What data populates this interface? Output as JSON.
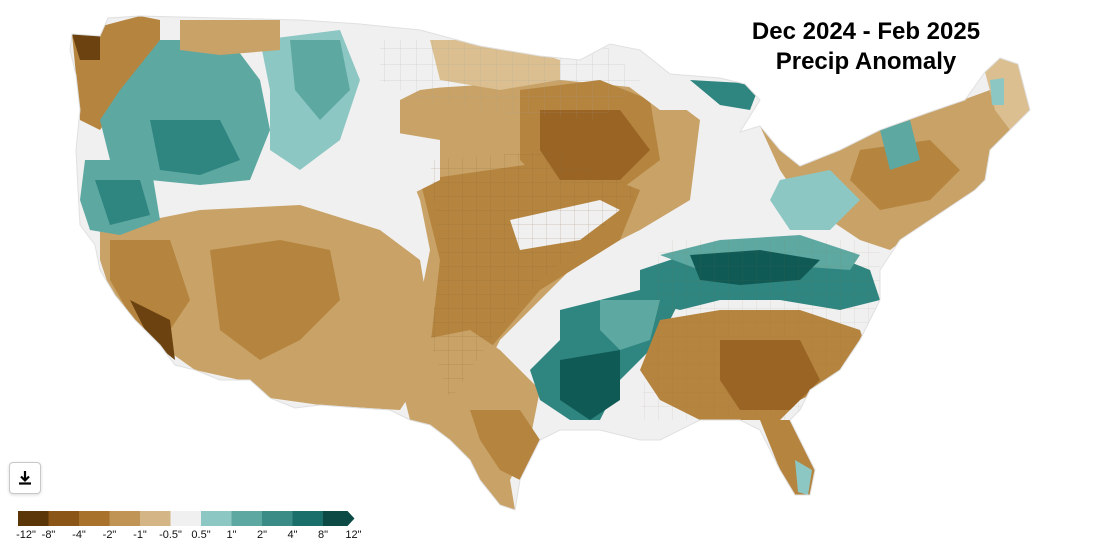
{
  "title": {
    "line1": "Dec 2024 - Feb 2025",
    "line2": "Precip Anomaly"
  },
  "download_button": {
    "icon": "download-icon"
  },
  "legend": {
    "labels": [
      "-12\"",
      "-8\"",
      "-4\"",
      "-2\"",
      "-1\"",
      "-0.5\"",
      "0.5\"",
      "1\"",
      "2\"",
      "4\"",
      "8\"",
      "12\""
    ],
    "colors": [
      "#5a3608",
      "#8c5518",
      "#a8712c",
      "#bf9455",
      "#d4b585",
      "#f0f0f0",
      "#8cc7c3",
      "#5ea8a2",
      "#3b8c86",
      "#1b6f6a",
      "#0d4a45"
    ]
  },
  "map_colors": {
    "very_dry": "#6b4210",
    "dry_strong": "#9a6424",
    "dry": "#b5843f",
    "dry_mild": "#c8a266",
    "dry_light": "#dbbf91",
    "neutral": "#f0f0f0",
    "wet_light": "#8cc7c3",
    "wet": "#5ea8a2",
    "wet_strong": "#2f8580",
    "very_wet": "#0f5a55"
  }
}
